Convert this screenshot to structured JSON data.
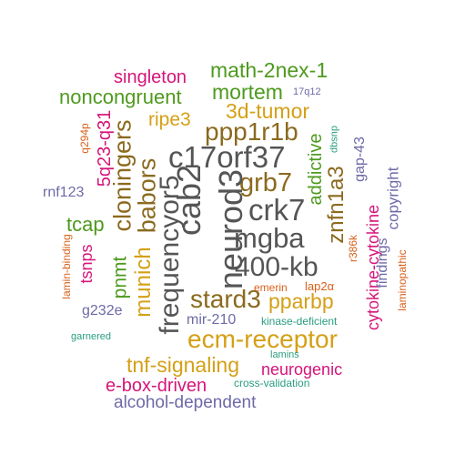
{
  "palette": {
    "gray": "#555555",
    "olive": "#8B6A1E",
    "gold": "#D4A017",
    "green": "#4E9A1E",
    "magenta": "#D6157A",
    "purple": "#6E6AA8",
    "orange": "#D9601A",
    "teal": "#2A9D7F"
  },
  "words": [
    {
      "text": "singleton",
      "color": "magenta"
    },
    {
      "text": "math-2nex-1",
      "color": "green"
    },
    {
      "text": "noncongruent",
      "color": "green"
    },
    {
      "text": "mortem",
      "color": "green"
    },
    {
      "text": "17q12",
      "color": "purple"
    },
    {
      "text": "3d-tumor",
      "color": "gold"
    },
    {
      "text": "ripe3",
      "color": "gold"
    },
    {
      "text": "ppp1r1b",
      "color": "olive"
    },
    {
      "text": "c17orf37",
      "color": "gray"
    },
    {
      "text": "grb7",
      "color": "olive"
    },
    {
      "text": "crk7",
      "color": "gray"
    },
    {
      "text": "mgba",
      "color": "gray"
    },
    {
      "text": "400-kb",
      "color": "gray"
    },
    {
      "text": "cab2",
      "color": "gray"
    },
    {
      "text": "neurod3",
      "color": "gray"
    },
    {
      "text": "frequencyor5",
      "color": "gray"
    },
    {
      "text": "babors",
      "color": "olive"
    },
    {
      "text": "cloningers",
      "color": "olive"
    },
    {
      "text": "5q23-q31",
      "color": "magenta"
    },
    {
      "text": "q294p",
      "color": "orange"
    },
    {
      "text": "rnf123",
      "color": "purple"
    },
    {
      "text": "tcap",
      "color": "green"
    },
    {
      "text": "tsnps",
      "color": "magenta"
    },
    {
      "text": "pnmt",
      "color": "green"
    },
    {
      "text": "munich",
      "color": "gold"
    },
    {
      "text": "lamin-binding",
      "color": "orange"
    },
    {
      "text": "g232e",
      "color": "purple"
    },
    {
      "text": "garnered",
      "color": "teal"
    },
    {
      "text": "addictive",
      "color": "green"
    },
    {
      "text": "dbsnp",
      "color": "teal"
    },
    {
      "text": "gap-43",
      "color": "purple"
    },
    {
      "text": "znfn1a3",
      "color": "olive"
    },
    {
      "text": "copyright",
      "color": "purple"
    },
    {
      "text": "r386k",
      "color": "orange"
    },
    {
      "text": "cytokine-cytokine",
      "color": "magenta"
    },
    {
      "text": "findings",
      "color": "purple"
    },
    {
      "text": "laminopathic",
      "color": "orange"
    },
    {
      "text": "stard3",
      "color": "olive"
    },
    {
      "text": "pparbp",
      "color": "gold"
    },
    {
      "text": "emerin",
      "color": "orange"
    },
    {
      "text": "lap2α",
      "color": "orange"
    },
    {
      "text": "mir-210",
      "color": "purple"
    },
    {
      "text": "kinase-deficient",
      "color": "teal"
    },
    {
      "text": "ecm-receptor",
      "color": "gold"
    },
    {
      "text": "lamins",
      "color": "teal"
    },
    {
      "text": "tnf-signaling",
      "color": "gold"
    },
    {
      "text": "neurogenic",
      "color": "magenta"
    },
    {
      "text": "e-box-driven",
      "color": "magenta"
    },
    {
      "text": "cross-validation",
      "color": "teal"
    },
    {
      "text": "alcohol-dependent",
      "color": "purple"
    }
  ]
}
